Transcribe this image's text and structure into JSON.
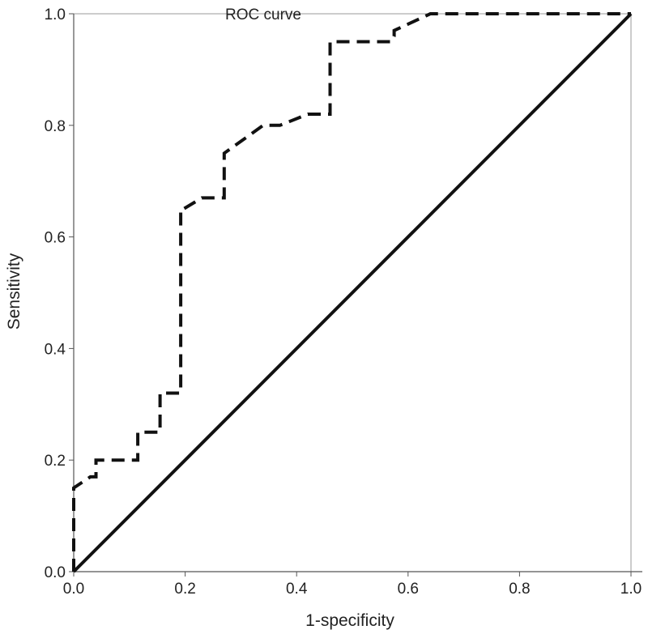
{
  "chart_data": {
    "type": "line",
    "title": "ROC curve",
    "xlabel": "1-specificity",
    "ylabel": "Sensitivity",
    "xlim": [
      0,
      1
    ],
    "ylim": [
      0,
      1
    ],
    "x_ticks": [
      "0.0",
      "0.2",
      "0.4",
      "0.6",
      "0.8",
      "1.0"
    ],
    "y_ticks": [
      "0.0",
      "0.2",
      "0.4",
      "0.6",
      "0.8",
      "1.0"
    ],
    "grid": false,
    "series": [
      {
        "style": "dashed",
        "color": "#111111",
        "x": [
          0,
          0,
          0.03,
          0.04,
          0.04,
          0.11,
          0.115,
          0.115,
          0.155,
          0.155,
          0.192,
          0.192,
          0.197,
          0.23,
          0.27,
          0.27,
          0.34,
          0.37,
          0.42,
          0.46,
          0.46,
          0.57,
          0.575,
          0.575,
          0.64,
          0.65,
          1.0
        ],
        "y": [
          0,
          0.15,
          0.17,
          0.17,
          0.2,
          0.2,
          0.2,
          0.25,
          0.25,
          0.32,
          0.32,
          0.65,
          0.65,
          0.67,
          0.67,
          0.75,
          0.8,
          0.8,
          0.82,
          0.82,
          0.95,
          0.95,
          0.96,
          0.97,
          1.0,
          1.0,
          1.0
        ]
      },
      {
        "style": "solid",
        "color": "#111111",
        "x": [
          0,
          1
        ],
        "y": [
          0,
          1
        ]
      }
    ]
  }
}
